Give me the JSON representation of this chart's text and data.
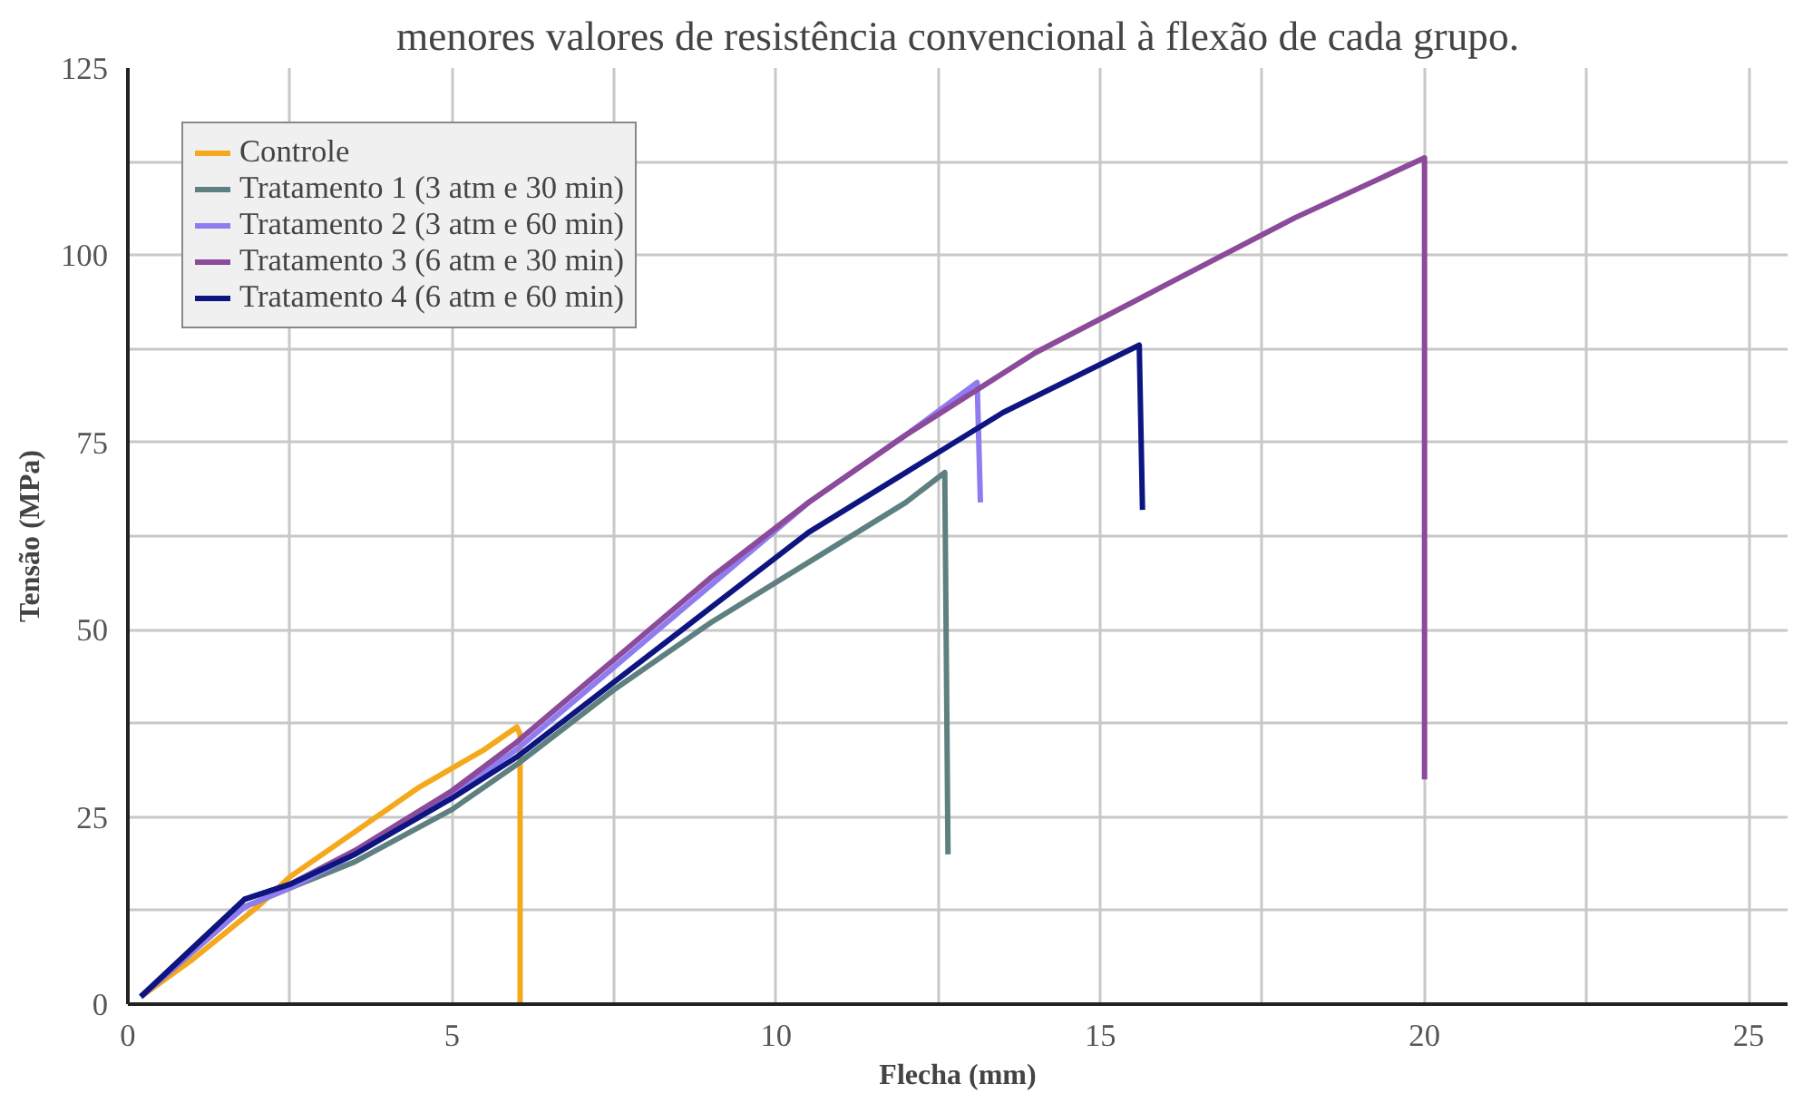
{
  "chart_data": {
    "type": "line",
    "title": "menores valores de resistência convencional à flexão de cada grupo.",
    "xlabel": "Flecha (mm)",
    "ylabel": "Tensão (MPa)",
    "xlim": [
      0,
      25.6
    ],
    "ylim": [
      0,
      125
    ],
    "xticks": [
      0,
      {
        "value": 2.5,
        "label": null
      },
      5,
      {
        "value": 7.5,
        "label": null
      },
      10,
      {
        "value": 12.5,
        "label": null
      },
      15,
      {
        "value": 17.5,
        "label": null
      },
      20,
      {
        "value": 22.5,
        "label": null
      },
      25
    ],
    "yticks": [
      0,
      {
        "value": 12.5,
        "label": null
      },
      25,
      {
        "value": 37.5,
        "label": null
      },
      50,
      {
        "value": 62.5,
        "label": null
      },
      75,
      {
        "value": 87.5,
        "label": null
      },
      100,
      {
        "value": 112.5,
        "label": null
      },
      125
    ],
    "grid": true,
    "legend": "top left",
    "marker": "none",
    "line_style": "solid",
    "series": [
      {
        "name": "Controle",
        "color": "#f5a81c",
        "x": [
          0.2,
          1,
          2,
          2.5,
          3.5,
          4.5,
          5.5,
          6,
          6.05,
          6.05
        ],
        "values": [
          1,
          6,
          13,
          17,
          23,
          29,
          34,
          37,
          36,
          0
        ]
      },
      {
        "name": "Tratamento 1 (3 atm e 30 min)",
        "color": "#5f8080",
        "x": [
          0.2,
          1.8,
          2.5,
          3.5,
          5,
          6,
          7.5,
          9,
          10.5,
          12,
          12.6,
          12.65
        ],
        "values": [
          1,
          13,
          15.5,
          19,
          26,
          32,
          42,
          51,
          59,
          67,
          71,
          20
        ]
      },
      {
        "name": "Tratamento 2 (3 atm e 60 min)",
        "color": "#8f7cf0",
        "x": [
          0.2,
          1.8,
          2.5,
          3.5,
          5,
          6,
          7.5,
          9,
          10.5,
          12,
          13.1,
          13.15
        ],
        "values": [
          1,
          13,
          15.5,
          20,
          28,
          34,
          45,
          56,
          67,
          76,
          83,
          67
        ]
      },
      {
        "name": "Tratamento 3 (6 atm e 30 min)",
        "color": "#8b4a9a",
        "x": [
          0.2,
          1.8,
          2.5,
          3.5,
          5,
          6,
          7.5,
          9,
          10.5,
          12,
          14,
          16,
          18,
          20,
          20
        ],
        "values": [
          1,
          14,
          16,
          20.5,
          28.5,
          35,
          46,
          57,
          67,
          76,
          87,
          96,
          105,
          113,
          30
        ]
      },
      {
        "name": "Tratamento 4 (6 atm e 60 min)",
        "color": "#0c1580",
        "x": [
          0.2,
          1.8,
          2.5,
          3.5,
          5,
          6,
          7.5,
          9,
          10.5,
          12,
          13.5,
          15.6,
          15.65
        ],
        "values": [
          1,
          14,
          16,
          20,
          27.5,
          33,
          43,
          53,
          63,
          71,
          79,
          88,
          66
        ]
      }
    ]
  }
}
